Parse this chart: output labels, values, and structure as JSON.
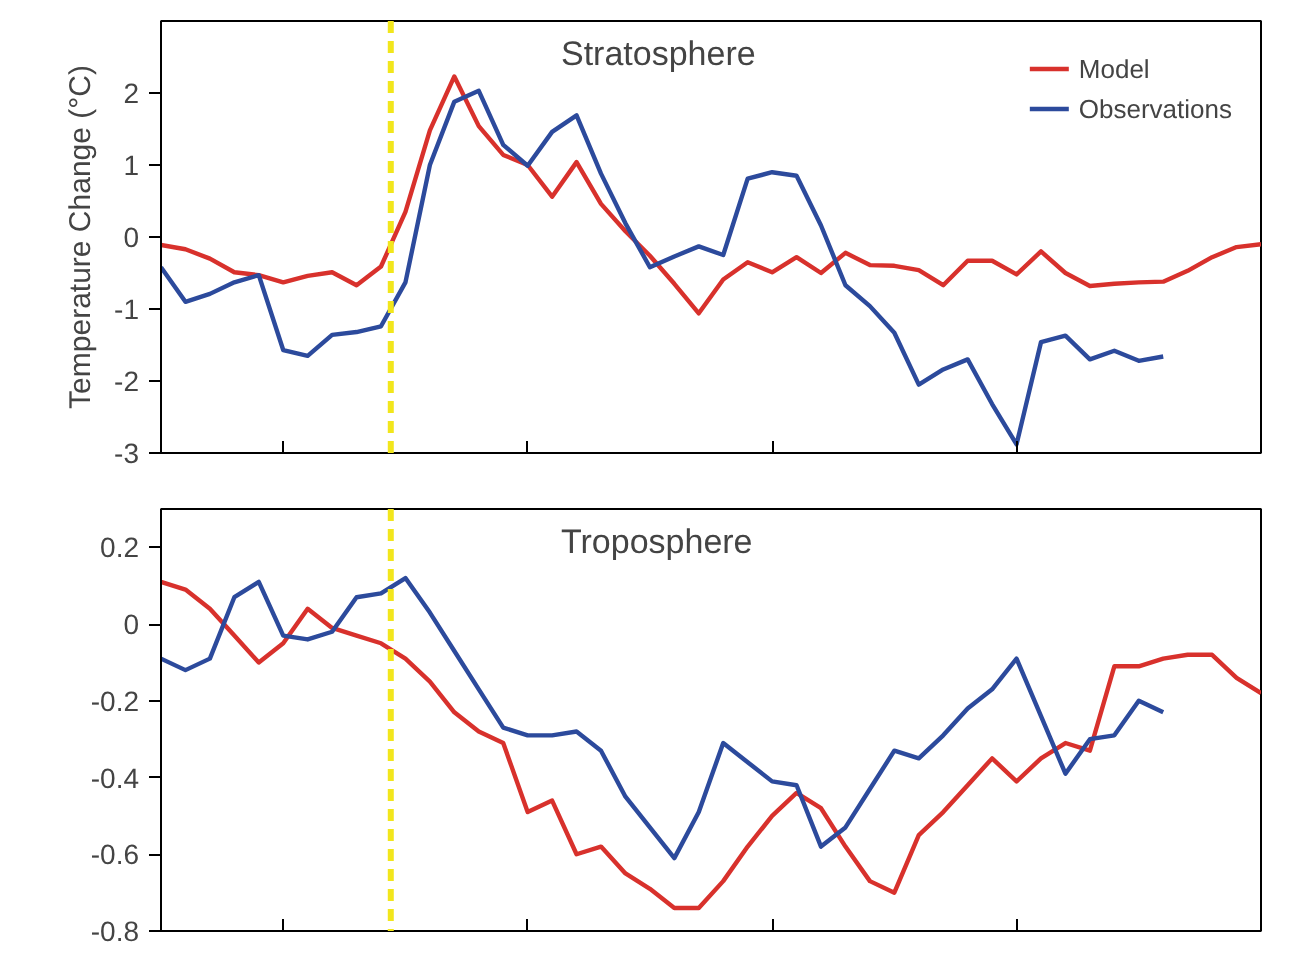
{
  "chart_data": [
    {
      "type": "line",
      "title": "Stratosphere",
      "ylabel": "Temperature Change (°C)",
      "legend": "top right",
      "categories": [
        null,
        null,
        null,
        null,
        null,
        null,
        null,
        null,
        null,
        null,
        null,
        null,
        null,
        null,
        null,
        null,
        null,
        null,
        null,
        null,
        null,
        null,
        null,
        null,
        null,
        null,
        null,
        null,
        null,
        null,
        null,
        null,
        null,
        null,
        null,
        null,
        null,
        null,
        null,
        null,
        null,
        null,
        null,
        null,
        null,
        null
      ],
      "ylim": [
        -3,
        3
      ],
      "yticks": [
        -3,
        -2,
        -1,
        0,
        1,
        2
      ],
      "series": [
        {
          "name": "Model",
          "color": "#d8312c",
          "values": [
            -0.11,
            -0.17,
            -0.3,
            -0.49,
            -0.53,
            -0.63,
            -0.54,
            -0.49,
            -0.67,
            -0.41,
            0.35,
            1.48,
            2.23,
            1.54,
            1.14,
            1.0,
            0.56,
            1.04,
            0.46,
            0.08,
            -0.26,
            -0.65,
            -1.06,
            -0.59,
            -0.35,
            -0.49,
            -0.28,
            -0.5,
            -0.22,
            -0.39,
            -0.4,
            -0.46,
            -0.67,
            -0.33,
            -0.33,
            -0.52,
            -0.2,
            -0.5,
            -0.68,
            -0.65,
            -0.63,
            -0.62,
            -0.47,
            -0.28,
            -0.14,
            -0.1
          ]
        },
        {
          "name": "Observations",
          "color": "#2c4a9c",
          "values": [
            -0.42,
            -0.9,
            -0.79,
            -0.63,
            -0.53,
            -1.57,
            -1.65,
            -1.36,
            -1.32,
            -1.24,
            -0.63,
            1.0,
            1.88,
            2.03,
            1.28,
            0.99,
            1.46,
            1.69,
            0.88,
            0.19,
            -0.42,
            -0.27,
            -0.13,
            -0.25,
            0.81,
            0.9,
            0.85,
            0.16,
            -0.67,
            -0.96,
            -1.33,
            -2.05,
            -1.84,
            -1.7,
            -2.32,
            -2.88,
            -1.46,
            -1.37,
            -1.7,
            -1.58,
            -1.72,
            -1.66,
            null,
            null,
            null,
            null
          ]
        }
      ]
    },
    {
      "type": "line",
      "title": "Troposphere",
      "categories": [
        null,
        null,
        null,
        null,
        null,
        null,
        null,
        null,
        null,
        null,
        null,
        null,
        null,
        null,
        null,
        null,
        null,
        null,
        null,
        null,
        null,
        null,
        null,
        null,
        null,
        null,
        null,
        null,
        null,
        null,
        null,
        null,
        null,
        null,
        null,
        null,
        null,
        null,
        null,
        null,
        null,
        null,
        null,
        null,
        null,
        null
      ],
      "ylim": [
        -0.8,
        0.3
      ],
      "yticks": [
        -0.8,
        -0.6,
        -0.4,
        -0.2,
        0,
        0.2
      ],
      "series": [
        {
          "color": "#d8312c",
          "values": [
            0.11,
            0.09,
            0.04,
            -0.03,
            -0.1,
            -0.05,
            0.04,
            -0.01,
            -0.03,
            -0.05,
            -0.09,
            -0.15,
            -0.23,
            -0.28,
            -0.31,
            -0.49,
            -0.46,
            -0.6,
            -0.58,
            -0.65,
            -0.69,
            -0.74,
            -0.74,
            -0.67,
            -0.58,
            -0.5,
            -0.44,
            -0.48,
            -0.58,
            -0.67,
            -0.7,
            -0.55,
            -0.49,
            -0.42,
            -0.35,
            -0.41,
            -0.35,
            -0.31,
            -0.33,
            -0.11,
            -0.11,
            -0.09,
            -0.08,
            -0.08,
            -0.14,
            -0.18
          ]
        },
        {
          "color": "#2c4a9c",
          "values": [
            -0.09,
            -0.12,
            -0.09,
            0.07,
            0.11,
            -0.03,
            -0.04,
            -0.02,
            0.07,
            0.08,
            0.12,
            0.03,
            -0.07,
            -0.17,
            -0.27,
            -0.29,
            -0.29,
            -0.28,
            -0.33,
            -0.45,
            -0.53,
            -0.61,
            -0.49,
            -0.31,
            -0.36,
            -0.41,
            -0.42,
            -0.58,
            -0.53,
            -0.43,
            -0.33,
            -0.35,
            -0.29,
            -0.22,
            -0.17,
            -0.09,
            -0.24,
            -0.39,
            -0.3,
            -0.29,
            -0.2,
            -0.23,
            null,
            null,
            null,
            null
          ]
        }
      ]
    }
  ]
}
